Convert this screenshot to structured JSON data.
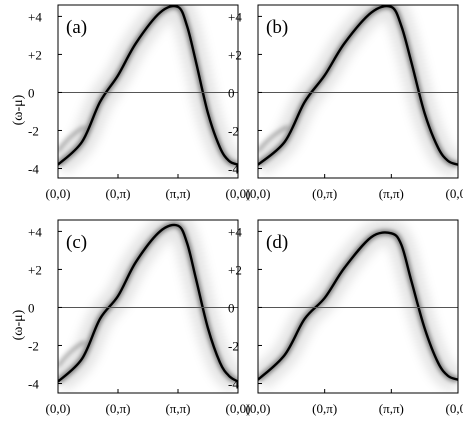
{
  "colors": {
    "ink": "#000000",
    "background": "#ffffff",
    "zero_line": "#555555"
  },
  "ylabel": "(ω-μ)",
  "chart_data": [
    {
      "type": "heatmap",
      "panel": "(a)",
      "ylabel": "(ω-μ)",
      "y_ticks": [
        "+4",
        "+2",
        "0",
        "-2",
        "-4"
      ],
      "x_ticks": [
        "(0,0)",
        "(0,π)",
        "(π,π)",
        "(0,0)"
      ],
      "ylim": [
        -4.5,
        4.6
      ],
      "dispersion": {
        "k": [
          0,
          0.4,
          0.7,
          1,
          1.3,
          1.7,
          2,
          2.15,
          2.3,
          2.5,
          2.7,
          2.85,
          3
        ],
        "energy": [
          -3.8,
          -2.6,
          -0.5,
          0.9,
          2.6,
          4.2,
          4.5,
          3.5,
          1.6,
          -1.1,
          -2.9,
          -3.6,
          -3.8
        ]
      },
      "kink_energy": 1.0,
      "lower_shadow_energy": -1.8,
      "upper_shadow_energy": 1.9
    },
    {
      "type": "heatmap",
      "panel": "(b)",
      "y_ticks": [
        "+4",
        "+2",
        "0",
        "-2",
        "-4"
      ],
      "x_ticks": [
        "(0,0)",
        "(0,π)",
        "(π,π)",
        "(0,0)"
      ],
      "ylim": [
        -4.5,
        4.6
      ],
      "dispersion": {
        "k": [
          0,
          0.4,
          0.7,
          1,
          1.3,
          1.7,
          2,
          2.15,
          2.3,
          2.5,
          2.7,
          2.85,
          3
        ],
        "energy": [
          -3.8,
          -2.6,
          -0.5,
          0.9,
          2.6,
          4.2,
          4.5,
          3.5,
          1.6,
          -1.1,
          -2.9,
          -3.6,
          -3.8
        ]
      },
      "kink_energy": 1.0,
      "lower_shadow_energy": -1.8,
      "upper_shadow_energy": 1.9
    },
    {
      "type": "heatmap",
      "panel": "(c)",
      "ylabel": "(ω-μ)",
      "y_ticks": [
        "+4",
        "+2",
        "0",
        "-2",
        "-4"
      ],
      "x_ticks": [
        "(0,0)",
        "(0,π)",
        "(π,π)",
        "(0,0)"
      ],
      "ylim": [
        -4.5,
        4.6
      ],
      "dispersion": {
        "k": [
          0,
          0.4,
          0.7,
          1,
          1.3,
          1.7,
          2,
          2.15,
          2.3,
          2.5,
          2.7,
          2.85,
          3
        ],
        "energy": [
          -3.9,
          -2.7,
          -0.6,
          0.6,
          2.4,
          4.0,
          4.3,
          3.4,
          1.5,
          -1.1,
          -2.9,
          -3.6,
          -3.9
        ]
      },
      "kink_energy": 0.6,
      "lower_shadow_energy": -1.8,
      "upper_shadow_energy": 1.9
    },
    {
      "type": "heatmap",
      "panel": "(d)",
      "y_ticks": [
        "+4",
        "+2",
        "0",
        "-2",
        "-4"
      ],
      "x_ticks": [
        "(0,0)",
        "(0,π)",
        "(π,π)",
        "(0,0)"
      ],
      "ylim": [
        -4.5,
        4.6
      ],
      "dispersion": {
        "k": [
          0,
          0.4,
          0.7,
          1,
          1.3,
          1.7,
          2,
          2.15,
          2.3,
          2.5,
          2.7,
          2.85,
          3
        ],
        "energy": [
          -3.8,
          -2.5,
          -0.6,
          0.5,
          2.1,
          3.7,
          3.9,
          3.3,
          1.4,
          -1.1,
          -2.9,
          -3.6,
          -3.8
        ]
      },
      "kink_energy": 0.5,
      "lower_shadow_energy": null,
      "upper_shadow_energy": 1.8
    }
  ]
}
